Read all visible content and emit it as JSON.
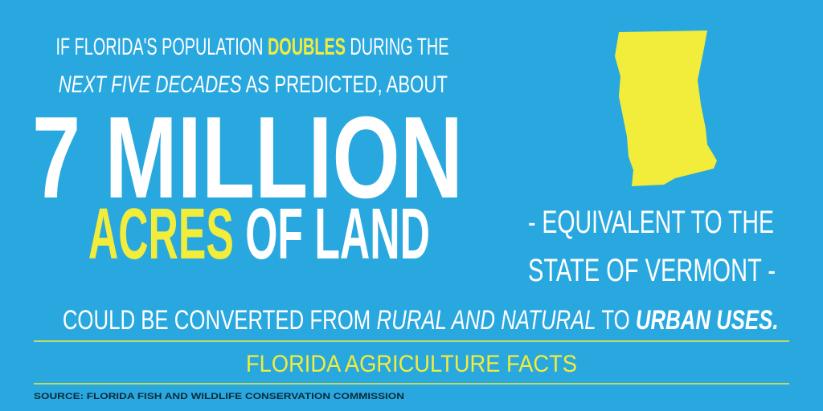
{
  "headline": {
    "line1": [
      "IF FLORIDA'S POPULATION ",
      "DOUBLES",
      " DURING THE"
    ],
    "line2": [
      "NEXT FIVE DECADES",
      " AS PREDICTED, ABOUT"
    ],
    "big": "7 MILLION",
    "line4": [
      "ACRES",
      " OF LAND"
    ]
  },
  "aside": {
    "line1": "- EQUIVALENT TO THE",
    "line2": "STATE OF VERMONT -"
  },
  "conclusion": [
    "COULD BE CONVERTED FROM ",
    "RURAL AND NATURAL",
    " TO ",
    "URBAN USES."
  ],
  "footer": {
    "brand": "FLORIDA AGRICULTURE FACTS",
    "source": "SOURCE: FLORIDA FISH AND WILDLIFE CONSERVATION COMMISSION"
  }
}
